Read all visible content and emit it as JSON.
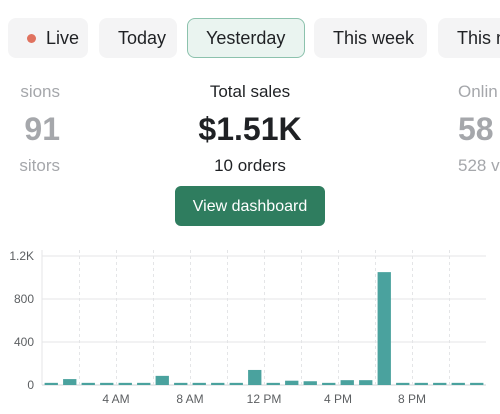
{
  "filters": {
    "live_label": "Live",
    "items": [
      {
        "label": "Today",
        "selected": false
      },
      {
        "label": "Yesterday",
        "selected": true
      },
      {
        "label": "This week",
        "selected": false
      },
      {
        "label": "This mo",
        "selected": false
      }
    ],
    "live_dot_color": "#e0725f"
  },
  "metrics": {
    "left": {
      "label": "sions",
      "value": "91",
      "sub": "sitors"
    },
    "center": {
      "label": "Total sales",
      "value": "$1.51K",
      "sub": "10 orders"
    },
    "right": {
      "label": "Onlin",
      "value": "58",
      "sub": "528 v"
    }
  },
  "cta": {
    "label": "View dashboard",
    "color": "#2f7d5f"
  },
  "chart_data": {
    "type": "bar",
    "bar_color": "#4aa29e",
    "y_ticks": [
      {
        "value": 0,
        "label": "0"
      },
      {
        "value": 400,
        "label": "400"
      },
      {
        "value": 800,
        "label": "800"
      },
      {
        "value": 1200,
        "label": "1.2K"
      }
    ],
    "ylim": [
      0,
      1200
    ],
    "x_ticks": [
      {
        "hour": 4,
        "label": "4 AM"
      },
      {
        "hour": 8,
        "label": "8 AM"
      },
      {
        "hour": 12,
        "label": "12 PM"
      },
      {
        "hour": 16,
        "label": "4 PM"
      },
      {
        "hour": 20,
        "label": "8 PM"
      }
    ],
    "hours": [
      0,
      1,
      2,
      3,
      4,
      5,
      6,
      7,
      8,
      9,
      10,
      11,
      12,
      13,
      14,
      15,
      16,
      17,
      18,
      19,
      20,
      21,
      22,
      23
    ],
    "values": [
      20,
      55,
      20,
      20,
      20,
      20,
      85,
      20,
      20,
      20,
      20,
      140,
      20,
      40,
      35,
      20,
      45,
      45,
      1050,
      20,
      20,
      20,
      20,
      20
    ],
    "grid": true
  }
}
